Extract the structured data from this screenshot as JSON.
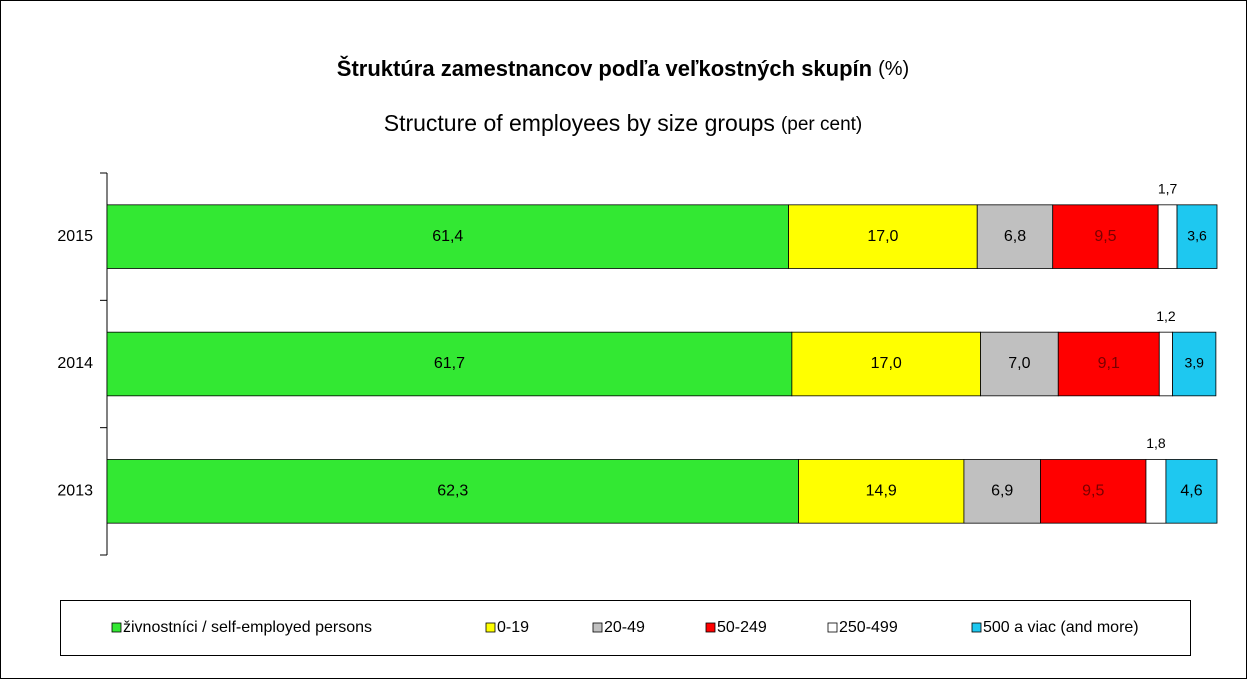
{
  "chart_data": {
    "type": "stacked_bar_horizontal",
    "title": "Štruktúra zamestnancov podľa veľkostných skupín",
    "title_unit": "(%)",
    "subtitle": "Structure of employees by size groups",
    "subtitle_unit": "(per cent)",
    "categories": [
      "2015",
      "2014",
      "2013"
    ],
    "xlim": [
      0,
      100
    ],
    "legend": "bottom",
    "series": [
      {
        "name": "živnostníci / self-employed persons",
        "color": "#33e833",
        "label_color": "#000000",
        "values": [
          61.4,
          61.7,
          62.3
        ],
        "value_labels": [
          "61,4",
          "61,7",
          "62,3"
        ]
      },
      {
        "name": "0-19",
        "color": "#ffff00",
        "label_color": "#000000",
        "values": [
          17.0,
          17.0,
          14.9
        ],
        "value_labels": [
          "17,0",
          "17,0",
          "14,9"
        ]
      },
      {
        "name": "20-49",
        "color": "#c0c0c0",
        "label_color": "#000000",
        "values": [
          6.8,
          7.0,
          6.9
        ],
        "value_labels": [
          "6,8",
          "7,0",
          "6,9"
        ]
      },
      {
        "name": "50-249",
        "color": "#ff0000",
        "label_color": "#7a0000",
        "values": [
          9.5,
          9.1,
          9.5
        ],
        "value_labels": [
          "9,5",
          "9,1",
          "9,5"
        ]
      },
      {
        "name": "250-499",
        "color": "#ffffff",
        "label_color": "#000000",
        "values": [
          1.7,
          1.2,
          1.8
        ],
        "value_labels": [
          "1,7",
          "1,2",
          "1,8"
        ]
      },
      {
        "name": "500 a viac (and more)",
        "color": "#1ec8f0",
        "label_color": "#000000",
        "values": [
          3.6,
          3.9,
          4.6
        ],
        "value_labels": [
          "3,6",
          "3,9",
          "4,6"
        ]
      }
    ]
  }
}
